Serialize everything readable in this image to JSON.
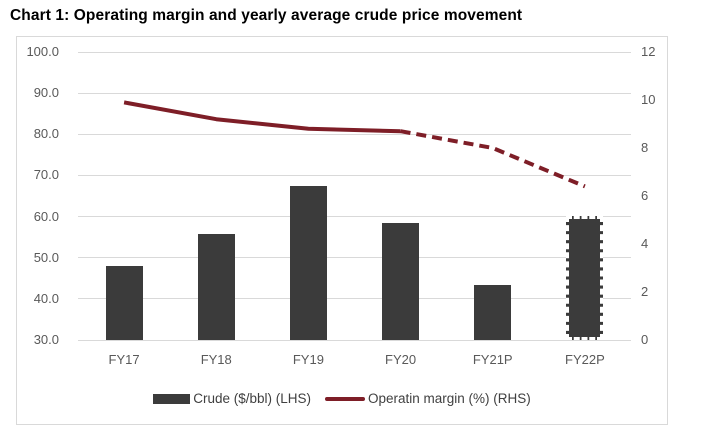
{
  "chart_data": {
    "type": "combo",
    "title": "Chart 1: Operating margin and yearly average crude price movement",
    "categories": [
      "FY17",
      "FY18",
      "FY19",
      "FY20",
      "FY21P",
      "FY22P"
    ],
    "series": [
      {
        "name": "Crude ($/bbl) (LHS)",
        "type": "bar",
        "axis": "left",
        "values": [
          47.9,
          55.8,
          67.4,
          58.5,
          43.4,
          60.2
        ],
        "projected": [
          "FY22P"
        ]
      },
      {
        "name": "Operatin margin (%) (RHS)",
        "type": "line",
        "axis": "right",
        "values": [
          9.9,
          9.2,
          8.8,
          8.7,
          8.0,
          6.4
        ],
        "solid_until_index": 3,
        "projected": [
          "FY21P",
          "FY22P"
        ]
      }
    ],
    "left_axis": {
      "min": 30,
      "max": 100,
      "step": 10,
      "ticks": [
        "100.0",
        "90.0",
        "80.0",
        "70.0",
        "60.0",
        "50.0",
        "40.0",
        "30.0"
      ]
    },
    "right_axis": {
      "min": 0,
      "max": 12,
      "step": 2,
      "ticks": [
        "12",
        "10",
        "8",
        "6",
        "4",
        "2",
        "0"
      ]
    },
    "grid": true,
    "legend_position": "bottom"
  },
  "colors": {
    "bar": "#3b3b3b",
    "line": "#7e1e27",
    "gridline": "#d9d9d9",
    "axis_text": "#595959",
    "legend_text": "#404040",
    "chart_border": "#d9d9d9",
    "background": "#ffffff",
    "title_text": "#000000"
  }
}
